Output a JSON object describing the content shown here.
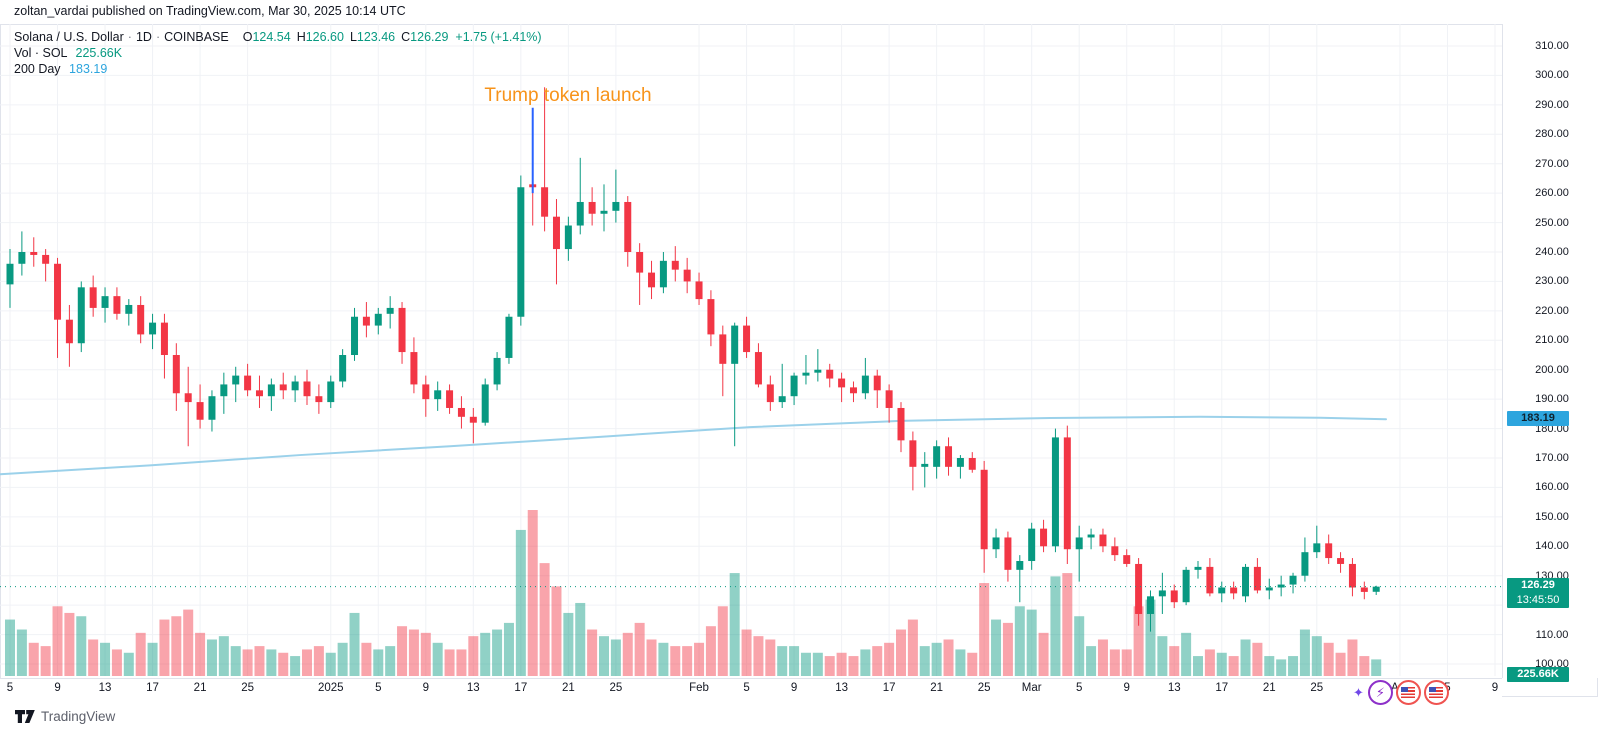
{
  "attribution": {
    "text": "zoltan_vardai published on TradingView.com, Mar 30, 2025 10:14 UTC"
  },
  "legend": {
    "symbol": "Solana / U.S. Dollar",
    "interval": "1D",
    "exchange": "COINBASE",
    "sep": "·",
    "ohlc": [
      {
        "k": "O",
        "v": "124.54"
      },
      {
        "k": "H",
        "v": "126.60"
      },
      {
        "k": "L",
        "v": "123.46"
      },
      {
        "k": "C",
        "v": "126.29"
      }
    ],
    "change": "+1.75 (+1.41%)",
    "vol_label": "Vol · SOL",
    "vol_value": "225.66K",
    "ma_label": "200 Day",
    "ma_value": "183.19"
  },
  "annotation": {
    "text": "Trump token launch"
  },
  "badges": {
    "ma_value": "183.19",
    "close_value": "126.29",
    "countdown": "13:45:50",
    "volume_value": "225.66K"
  },
  "footer": {
    "brand": "TradingView"
  },
  "reactions": {
    "bolt": "⚡",
    "sparkle": "✦"
  },
  "colors": {
    "up": "#089981",
    "down": "#f23645",
    "vol_up": "rgba(8,153,129,0.45)",
    "vol_down": "rgba(242,54,69,0.45)",
    "ma": "#9bd1ea",
    "grid": "#f0f2f6",
    "accent_orange": "#f7931a",
    "badge_blue": "#2da5de",
    "annotation_line": "#2962ff"
  },
  "chart_data": {
    "type": "candlestick+volume",
    "title": "Solana / U.S. Dollar · 1D · COINBASE",
    "start_date": "2024-12-05",
    "end_date": "2025-03-30",
    "last_close": 126.29,
    "ma200_current": 183.19,
    "y_axis": {
      "min": 100,
      "max": 310,
      "step": 10,
      "decimals": 2
    },
    "x_ticks": [
      {
        "i": 0,
        "label": "5"
      },
      {
        "i": 4,
        "label": "9"
      },
      {
        "i": 8,
        "label": "13"
      },
      {
        "i": 12,
        "label": "17"
      },
      {
        "i": 16,
        "label": "21"
      },
      {
        "i": 20,
        "label": "25"
      },
      {
        "i": 27,
        "label": "2025"
      },
      {
        "i": 31,
        "label": "5"
      },
      {
        "i": 35,
        "label": "9"
      },
      {
        "i": 39,
        "label": "13"
      },
      {
        "i": 43,
        "label": "17"
      },
      {
        "i": 47,
        "label": "21"
      },
      {
        "i": 51,
        "label": "25"
      },
      {
        "i": 58,
        "label": "Feb"
      },
      {
        "i": 62,
        "label": "5"
      },
      {
        "i": 66,
        "label": "9"
      },
      {
        "i": 70,
        "label": "13"
      },
      {
        "i": 74,
        "label": "17"
      },
      {
        "i": 78,
        "label": "21"
      },
      {
        "i": 82,
        "label": "25"
      },
      {
        "i": 86,
        "label": "Mar"
      },
      {
        "i": 90,
        "label": "5"
      },
      {
        "i": 94,
        "label": "9"
      },
      {
        "i": 98,
        "label": "13"
      },
      {
        "i": 102,
        "label": "17"
      },
      {
        "i": 106,
        "label": "21"
      },
      {
        "i": 110,
        "label": "25"
      },
      {
        "i": 117,
        "label": "Apr"
      },
      {
        "i": 121,
        "label": "5"
      },
      {
        "i": 125,
        "label": "9"
      }
    ],
    "annotation_line": {
      "index": 44,
      "price_top": 289,
      "price_bottom": 260
    },
    "ma200_points": [
      [
        0,
        164.5
      ],
      [
        150,
        167.5
      ],
      [
        300,
        171.0
      ],
      [
        450,
        174.0
      ],
      [
        600,
        177.2
      ],
      [
        750,
        180.5
      ],
      [
        900,
        182.6
      ],
      [
        1050,
        183.6
      ],
      [
        1200,
        184.0
      ],
      [
        1320,
        183.7
      ],
      [
        1386,
        183.19
      ]
    ],
    "candles_format": [
      "open",
      "high",
      "low",
      "close",
      "volume_rel"
    ],
    "candles": [
      [
        229,
        241,
        221,
        236,
        34
      ],
      [
        236,
        247,
        232,
        240,
        28
      ],
      [
        240,
        245,
        235,
        239,
        20
      ],
      [
        239,
        241,
        230,
        236,
        18
      ],
      [
        236,
        238,
        204,
        217,
        42
      ],
      [
        217,
        222,
        201,
        209,
        38
      ],
      [
        209,
        230,
        206,
        228,
        36
      ],
      [
        228,
        232,
        218,
        221,
        22
      ],
      [
        221,
        228,
        216,
        225,
        20
      ],
      [
        225,
        228,
        217,
        219,
        16
      ],
      [
        219,
        224,
        215,
        222,
        14
      ],
      [
        222,
        225,
        209,
        212,
        26
      ],
      [
        212,
        219,
        207,
        216,
        20
      ],
      [
        216,
        219,
        197,
        205,
        34
      ],
      [
        205,
        209,
        186,
        192,
        36
      ],
      [
        192,
        201,
        174,
        189,
        40
      ],
      [
        189,
        195,
        180,
        183,
        26
      ],
      [
        183,
        193,
        179,
        191,
        22
      ],
      [
        191,
        199,
        185,
        195,
        24
      ],
      [
        195,
        201,
        189,
        198,
        18
      ],
      [
        198,
        202,
        191,
        193,
        16
      ],
      [
        193,
        198,
        187,
        191,
        18
      ],
      [
        191,
        197,
        186,
        195,
        16
      ],
      [
        195,
        199,
        190,
        193,
        14
      ],
      [
        193,
        198,
        189,
        196,
        12
      ],
      [
        196,
        200,
        188,
        191,
        16
      ],
      [
        191,
        195,
        185,
        189,
        18
      ],
      [
        189,
        198,
        187,
        196,
        14
      ],
      [
        196,
        207,
        194,
        205,
        20
      ],
      [
        205,
        221,
        203,
        218,
        38
      ],
      [
        218,
        223,
        211,
        215,
        20
      ],
      [
        215,
        221,
        212,
        219,
        16
      ],
      [
        219,
        225,
        214,
        221,
        18
      ],
      [
        221,
        223,
        202,
        206,
        30
      ],
      [
        206,
        211,
        192,
        195,
        28
      ],
      [
        195,
        198,
        184,
        190,
        26
      ],
      [
        190,
        196,
        186,
        193,
        20
      ],
      [
        193,
        195,
        185,
        187,
        16
      ],
      [
        187,
        191,
        180,
        184,
        16
      ],
      [
        184,
        187,
        175,
        182,
        24
      ],
      [
        182,
        197,
        181,
        195,
        26
      ],
      [
        195,
        206,
        193,
        204,
        28
      ],
      [
        204,
        219,
        202,
        218,
        32
      ],
      [
        218,
        266,
        215,
        262,
        88
      ],
      [
        263,
        277,
        249,
        262,
        100
      ],
      [
        262,
        296,
        247,
        252,
        68
      ],
      [
        252,
        258,
        229,
        241,
        54
      ],
      [
        241,
        252,
        237,
        249,
        38
      ],
      [
        249,
        272,
        246,
        257,
        44
      ],
      [
        257,
        262,
        249,
        253,
        28
      ],
      [
        253,
        263,
        247,
        254,
        24
      ],
      [
        254,
        268,
        250,
        257,
        22
      ],
      [
        257,
        259,
        235,
        240,
        26
      ],
      [
        240,
        243,
        222,
        233,
        32
      ],
      [
        233,
        237,
        224,
        228,
        22
      ],
      [
        228,
        240,
        226,
        237,
        20
      ],
      [
        237,
        242,
        230,
        234,
        18
      ],
      [
        234,
        238,
        226,
        230,
        18
      ],
      [
        230,
        233,
        222,
        224,
        20
      ],
      [
        224,
        227,
        208,
        212,
        30
      ],
      [
        212,
        215,
        191,
        202,
        42
      ],
      [
        202,
        216,
        174,
        215,
        62
      ],
      [
        215,
        218,
        204,
        206,
        28
      ],
      [
        206,
        209,
        194,
        195,
        24
      ],
      [
        195,
        198,
        186,
        189,
        22
      ],
      [
        189,
        202,
        187,
        191,
        18
      ],
      [
        191,
        199,
        188,
        198,
        18
      ],
      [
        198,
        205,
        195,
        199,
        14
      ],
      [
        199,
        207,
        196,
        200,
        14
      ],
      [
        200,
        202,
        194,
        197,
        12
      ],
      [
        197,
        199,
        189,
        194,
        14
      ],
      [
        194,
        196,
        189,
        192,
        12
      ],
      [
        192,
        204,
        190,
        198,
        16
      ],
      [
        198,
        200,
        187,
        193,
        18
      ],
      [
        193,
        195,
        182,
        187,
        20
      ],
      [
        187,
        189,
        172,
        176,
        28
      ],
      [
        176,
        179,
        159,
        167,
        34
      ],
      [
        167,
        172,
        160,
        168,
        18
      ],
      [
        167,
        176,
        163,
        174,
        20
      ],
      [
        174,
        177,
        164,
        167,
        22
      ],
      [
        167,
        171,
        163,
        170,
        16
      ],
      [
        170,
        172,
        165,
        166,
        14
      ],
      [
        166,
        169,
        131,
        139,
        56
      ],
      [
        139,
        146,
        136,
        143,
        34
      ],
      [
        143,
        145,
        128,
        132,
        32
      ],
      [
        132,
        137,
        121,
        135,
        42
      ],
      [
        135,
        148,
        132,
        146,
        40
      ],
      [
        146,
        149,
        138,
        140,
        26
      ],
      [
        140,
        180,
        138,
        177,
        60
      ],
      [
        177,
        181,
        134,
        139,
        62
      ],
      [
        139,
        147,
        128,
        143,
        36
      ],
      [
        143,
        146,
        139,
        144,
        18
      ],
      [
        144,
        146,
        138,
        140,
        22
      ],
      [
        140,
        143,
        135,
        137,
        16
      ],
      [
        137,
        139,
        133,
        134,
        16
      ],
      [
        134,
        136,
        113,
        117,
        42
      ],
      [
        117,
        125,
        111,
        123,
        46
      ],
      [
        123,
        131,
        117,
        125,
        24
      ],
      [
        125,
        127,
        119,
        121,
        18
      ],
      [
        121,
        133,
        120,
        132,
        26
      ],
      [
        132,
        135,
        129,
        133,
        12
      ],
      [
        133,
        136,
        123,
        124,
        16
      ],
      [
        124,
        128,
        121,
        126,
        14
      ],
      [
        126,
        128,
        122,
        124,
        12
      ],
      [
        123,
        134,
        121,
        133,
        22
      ],
      [
        133,
        136,
        124,
        125,
        20
      ],
      [
        125,
        129,
        122,
        126,
        12
      ],
      [
        126,
        130,
        123,
        127,
        10
      ],
      [
        127,
        131,
        124,
        130,
        12
      ],
      [
        130,
        143,
        128,
        138,
        28
      ],
      [
        138,
        147,
        136,
        141,
        24
      ],
      [
        141,
        144,
        134,
        136,
        20
      ],
      [
        136,
        138,
        131,
        134,
        14
      ],
      [
        134,
        136,
        123,
        126,
        22
      ],
      [
        126,
        128,
        122,
        124.5,
        12
      ],
      [
        124.54,
        126.6,
        123.46,
        126.29,
        10
      ]
    ]
  }
}
